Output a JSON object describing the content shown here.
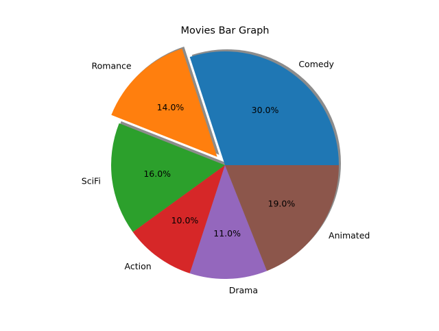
{
  "chart_data": {
    "type": "pie",
    "title": "Movies Bar Graph",
    "categories": [
      "Comedy",
      "Romance",
      "SciFi",
      "Action",
      "Drama",
      "Animated"
    ],
    "values": [
      30,
      14,
      16,
      10,
      11,
      19
    ],
    "percent_labels": [
      "30.0%",
      "14.0%",
      "16.0%",
      "10.0%",
      "11.0%",
      "19.0%"
    ],
    "colors": [
      "#1f77b4",
      "#ff7f0e",
      "#2ca02c",
      "#d62728",
      "#9467bd",
      "#8c564b"
    ],
    "exploded": [
      "Romance"
    ],
    "shadow": true,
    "start_angle_deg": 0,
    "direction": "counterclockwise"
  }
}
